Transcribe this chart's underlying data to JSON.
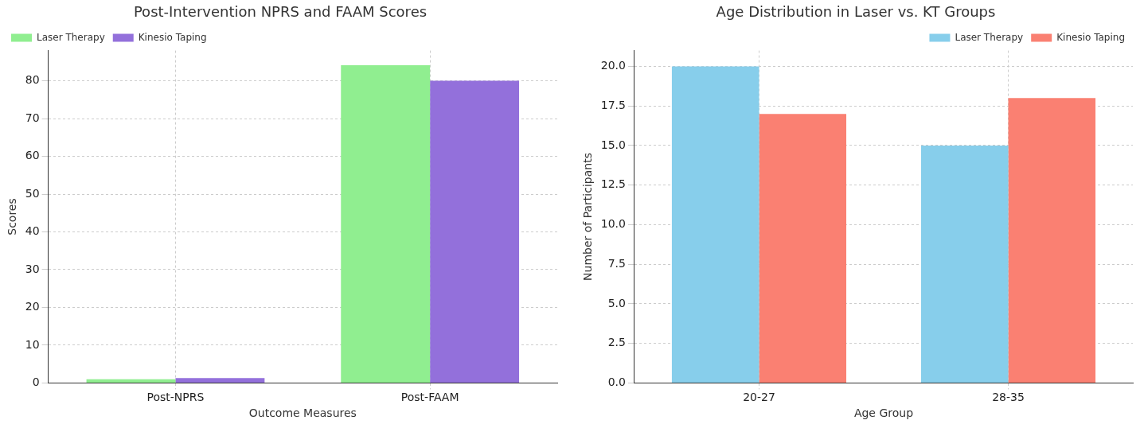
{
  "chart_data": [
    {
      "type": "bar",
      "title": "Post-Intervention NPRS and FAAM Scores",
      "xlabel": "Outcome Measures",
      "ylabel": "Scores",
      "categories": [
        "Post-NPRS",
        "Post-FAAM"
      ],
      "series": [
        {
          "name": "Laser Therapy",
          "color": "#90ee90",
          "values": [
            1,
            84.1
          ]
        },
        {
          "name": "Kinesio Taping",
          "color": "#9370db",
          "values": [
            1.3,
            80
          ]
        }
      ],
      "ylim": [
        0,
        88
      ],
      "yticks": [
        0,
        10,
        20,
        30,
        40,
        50,
        60,
        70,
        80
      ],
      "grid": true,
      "legend": "top left"
    },
    {
      "type": "bar",
      "title": "Age Distribution in Laser vs. KT Groups",
      "xlabel": "Age Group",
      "ylabel": "Number of Participants",
      "categories": [
        "20-27",
        "28-35"
      ],
      "series": [
        {
          "name": "Laser Therapy",
          "color": "#87ceeb",
          "values": [
            20,
            15
          ]
        },
        {
          "name": "Kinesio Taping",
          "color": "#fa8072",
          "values": [
            17,
            18
          ]
        }
      ],
      "ylim": [
        0,
        21
      ],
      "yticks": [
        {
          "value": 0,
          "label": "0.0"
        },
        {
          "value": 2.5,
          "label": "2.5"
        },
        {
          "value": 5,
          "label": "5.0"
        },
        {
          "value": 7.5,
          "label": "7.5"
        },
        {
          "value": 10,
          "label": "10.0"
        },
        {
          "value": 12.5,
          "label": "12.5"
        },
        {
          "value": 15,
          "label": "15.0"
        },
        {
          "value": 17.5,
          "label": "17.5"
        },
        {
          "value": 20,
          "label": "20.0"
        }
      ],
      "grid": true,
      "legend": "top right"
    }
  ]
}
